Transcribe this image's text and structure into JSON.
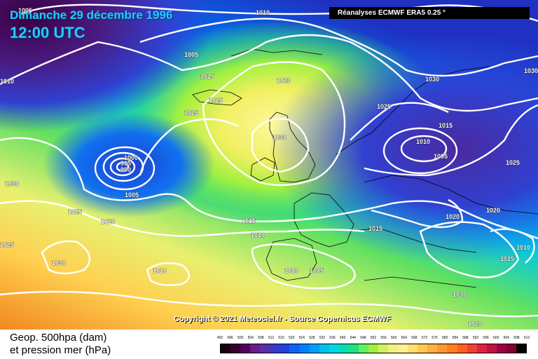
{
  "header": {
    "date_line": "Dimanche 29 décembre 1996",
    "time_line": "12:00 UTC",
    "source_label": "Réanalyses ECMWF ERA5 0.25 °"
  },
  "map": {
    "copyright": "Copyright © 2021 Meteociel.fr - Source Copernicus ECMWF",
    "isobar_labels": [
      "1005",
      "1010",
      "1005",
      "1015",
      "1020",
      "1025",
      "1025",
      "1030",
      "1030",
      "1025",
      "1030",
      "1010",
      "1015",
      "1005",
      "1025",
      "1000",
      "995",
      "990",
      "1005",
      "1030",
      "1025",
      "1020",
      "1015",
      "1010",
      "1015",
      "1020",
      "1020",
      "1010",
      "1015",
      "1010",
      "1000",
      "1005",
      "1030",
      "1025",
      "1010",
      "1020",
      "1030"
    ]
  },
  "legend": {
    "title_line1": "Geop. 500hpa (dam)",
    "title_line2": "et pression mer (hPa)",
    "scale_labels": [
      "492",
      "496",
      "500",
      "504",
      "508",
      "512",
      "516",
      "520",
      "524",
      "528",
      "532",
      "536",
      "540",
      "544",
      "548",
      "552",
      "556",
      "560",
      "564",
      "568",
      "572",
      "576",
      "580",
      "584",
      "588",
      "592",
      "596",
      "600",
      "604",
      "608",
      "612"
    ],
    "scale_colors": [
      "#1a0014",
      "#3a0030",
      "#55005a",
      "#6a1b8a",
      "#5a2fa8",
      "#3a3ac8",
      "#2040e0",
      "#1060f0",
      "#0080f8",
      "#00a0f8",
      "#00c0f0",
      "#00d8e0",
      "#00e0b0",
      "#20e080",
      "#60f060",
      "#a0f040",
      "#d0f060",
      "#f0f080",
      "#fff090",
      "#ffe070",
      "#ffc850",
      "#ffb040",
      "#ff9830",
      "#ff8020",
      "#ff6020",
      "#f04030",
      "#e02040",
      "#c01040",
      "#a00040",
      "#800030",
      "#000000"
    ]
  }
}
